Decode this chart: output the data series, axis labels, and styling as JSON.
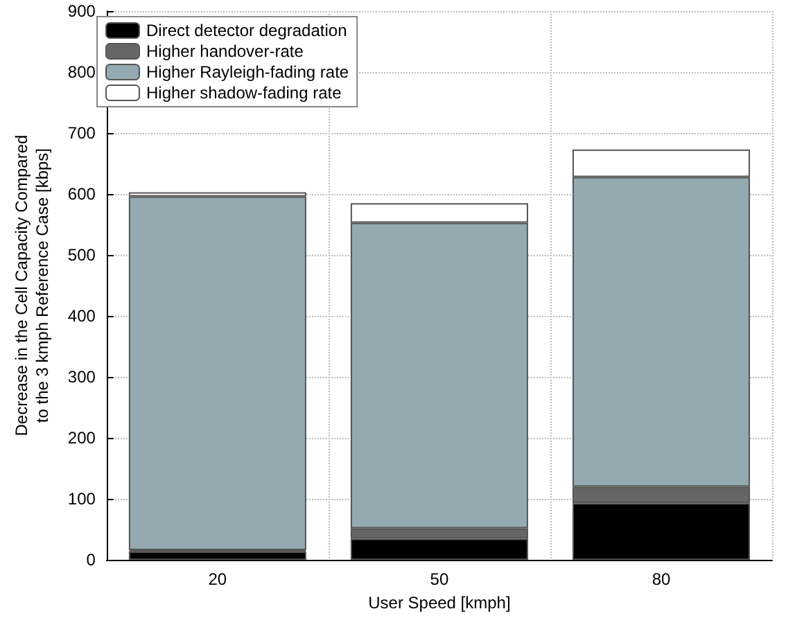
{
  "chart_data": {
    "type": "bar",
    "stacked": true,
    "xlabel": "User Speed [kmph]",
    "ylabel": "Decrease in the Cell Capacity Compared\nto the 3 kmph Reference Case [kbps]",
    "categories": [
      "20",
      "50",
      "80"
    ],
    "series": [
      {
        "name": "Direct detector degradation",
        "color": "#000000",
        "values": [
          14,
          35,
          93
        ]
      },
      {
        "name": "Higher handover-rate",
        "color": "#666666",
        "values": [
          2,
          17,
          27
        ]
      },
      {
        "name": "Higher Rayleigh-fading rate",
        "color": "#94a9b0",
        "values": [
          580,
          501,
          508
        ]
      },
      {
        "name": "Higher shadow-fading rate",
        "color": "#ffffff",
        "values": [
          7,
          32,
          45
        ]
      }
    ],
    "ylim": [
      0,
      900
    ],
    "yticks": [
      0,
      100,
      200,
      300,
      400,
      500,
      600,
      700,
      800,
      900
    ],
    "grid": true,
    "legend": "top left"
  }
}
